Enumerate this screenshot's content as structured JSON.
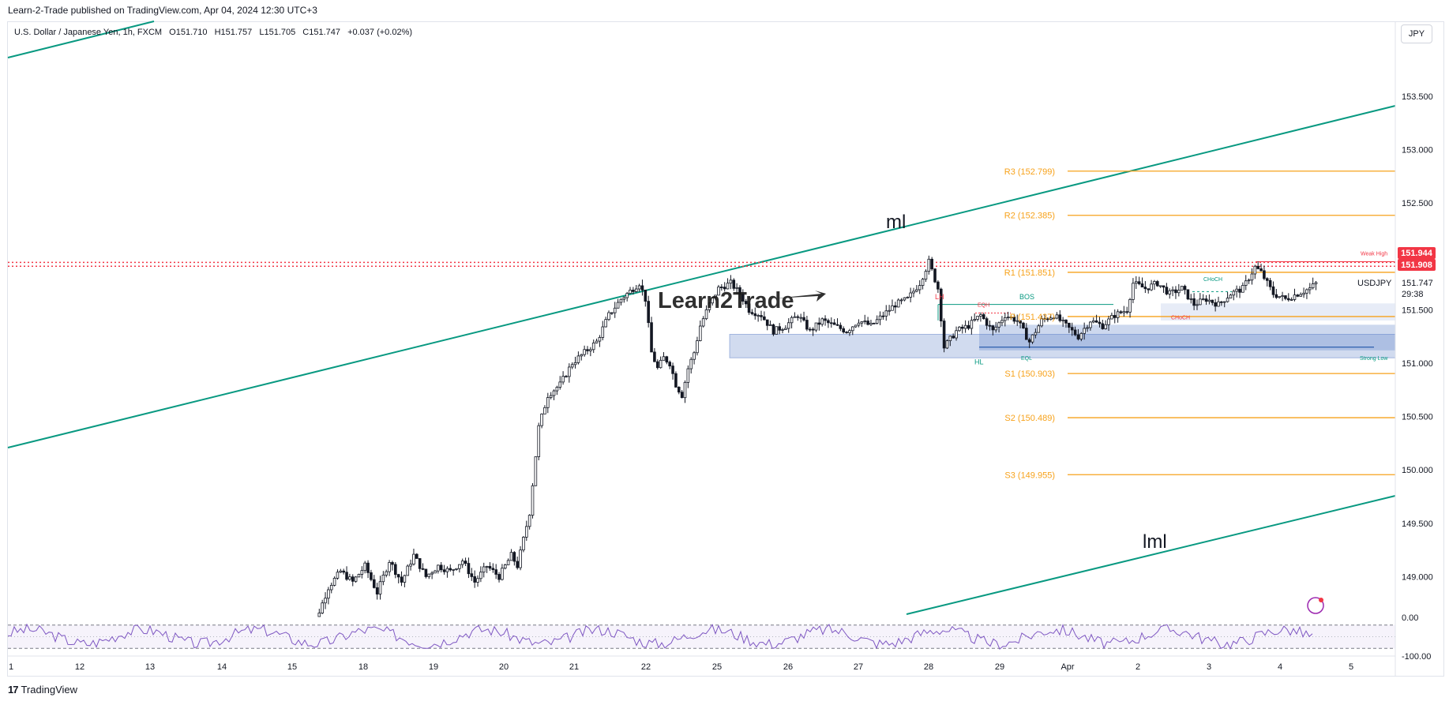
{
  "header": {
    "publish_text": "Learn-2-Trade published on TradingView.com, Apr 04, 2024 12:30 UTC+3",
    "symbol_name": "U.S. Dollar / Japanese Yen, 1h, FXCM",
    "open": "O151.710",
    "high": "H151.757",
    "low": "L151.705",
    "close": "C151.747",
    "change": "+0.037 (+0.02%)",
    "currency_button": "JPY"
  },
  "footer": {
    "brand": "TradingView",
    "logo_glyph": "17"
  },
  "watermark": "Learn2Trade",
  "colors": {
    "bull_bear_candle": "#131722",
    "channel": "#089981",
    "pivot": "#f7a21b",
    "resistance_dots": "#f23645",
    "zone": "#5b7fc7",
    "rsi": "#7e57c2"
  },
  "chart_data": {
    "type": "candlestick",
    "symbol": "USDJPY",
    "interval": "1h",
    "ylim": [
      148.6,
      153.9
    ],
    "y_ticks": [
      "153.500",
      "153.000",
      "152.500",
      "152.000",
      "151.500",
      "151.000",
      "150.500",
      "150.000",
      "149.500",
      "149.000"
    ],
    "y_tick_values": [
      153.5,
      153.0,
      152.5,
      152.0,
      151.5,
      151.0,
      150.5,
      150.0,
      149.5,
      149.0
    ],
    "x_ticks": [
      "1",
      "12",
      "13",
      "14",
      "15",
      "18",
      "19",
      "20",
      "21",
      "22",
      "25",
      "26",
      "27",
      "28",
      "29",
      "Apr",
      "2",
      "3",
      "4",
      "5"
    ],
    "price_badges": [
      {
        "label": "151.944",
        "value": 151.944,
        "color": "#f23645"
      },
      {
        "label": "151.908",
        "value": 151.908,
        "color": "#f23645"
      }
    ],
    "last_price": {
      "symbol": "USDJPY",
      "label": "151.747",
      "timer": "29:38",
      "value": 151.747
    },
    "pivots": [
      {
        "label": "R3 (152.799)",
        "value": 152.799
      },
      {
        "label": "R2 (152.385)",
        "value": 152.385
      },
      {
        "label": "R1 (151.851)",
        "value": 151.851
      },
      {
        "label": "P (151.437)",
        "value": 151.437
      },
      {
        "label": "S1 (150.903)",
        "value": 150.903
      },
      {
        "label": "S2 (150.489)",
        "value": 150.489
      },
      {
        "label": "S3 (149.955)",
        "value": 149.955
      }
    ],
    "channel_labels": [
      "ml",
      "lml"
    ],
    "smc_labels": {
      "lh": "LH",
      "eqh": "EQH",
      "bos": "BOS",
      "hl": "HL",
      "eql": "EQL",
      "choch_top": "CHoCH",
      "choch_bottom": "CHoCH",
      "weak_high": "Weak High",
      "strong_low": "Strong Low"
    },
    "resistance_levels": [
      151.944,
      151.908
    ],
    "price_path": [
      [
        0,
        148.45
      ],
      [
        4,
        148.6
      ],
      [
        8,
        148.9
      ],
      [
        12,
        149.05
      ],
      [
        16,
        148.95
      ],
      [
        20,
        149.1
      ],
      [
        24,
        148.85
      ],
      [
        28,
        149.15
      ],
      [
        32,
        148.95
      ],
      [
        36,
        149.2
      ],
      [
        40,
        149.0
      ],
      [
        44,
        149.1
      ],
      [
        48,
        149.05
      ],
      [
        52,
        149.15
      ],
      [
        56,
        148.95
      ],
      [
        60,
        149.1
      ],
      [
        64,
        149.0
      ],
      [
        68,
        149.2
      ],
      [
        70,
        149.1
      ],
      [
        74,
        149.6
      ],
      [
        77,
        150.4
      ],
      [
        80,
        150.7
      ],
      [
        84,
        150.8
      ],
      [
        88,
        151.0
      ],
      [
        92,
        151.1
      ],
      [
        96,
        151.2
      ],
      [
        100,
        151.45
      ],
      [
        104,
        151.6
      ],
      [
        108,
        151.7
      ],
      [
        110,
        151.75
      ],
      [
        112,
        151.6
      ],
      [
        114,
        151.1
      ],
      [
        116,
        150.95
      ],
      [
        118,
        151.05
      ],
      [
        120,
        151.0
      ],
      [
        122,
        150.8
      ],
      [
        124,
        150.7
      ],
      [
        126,
        150.95
      ],
      [
        128,
        151.1
      ],
      [
        130,
        151.35
      ],
      [
        133,
        151.55
      ],
      [
        136,
        151.7
      ],
      [
        140,
        151.75
      ],
      [
        143,
        151.65
      ],
      [
        146,
        151.5
      ],
      [
        150,
        151.45
      ],
      [
        154,
        151.3
      ],
      [
        158,
        151.35
      ],
      [
        162,
        151.45
      ],
      [
        166,
        151.3
      ],
      [
        170,
        151.4
      ],
      [
        174,
        151.35
      ],
      [
        178,
        151.3
      ],
      [
        182,
        151.4
      ],
      [
        186,
        151.35
      ],
      [
        190,
        151.45
      ],
      [
        194,
        151.55
      ],
      [
        198,
        151.6
      ],
      [
        202,
        151.75
      ],
      [
        205,
        151.95
      ],
      [
        208,
        151.7
      ],
      [
        210,
        151.15
      ],
      [
        214,
        151.3
      ],
      [
        218,
        151.35
      ],
      [
        222,
        151.45
      ],
      [
        226,
        151.3
      ],
      [
        230,
        151.45
      ],
      [
        234,
        151.4
      ],
      [
        238,
        151.2
      ],
      [
        242,
        151.4
      ],
      [
        246,
        151.45
      ],
      [
        250,
        151.35
      ],
      [
        254,
        151.25
      ],
      [
        258,
        151.4
      ],
      [
        262,
        151.35
      ],
      [
        266,
        151.45
      ],
      [
        270,
        151.5
      ],
      [
        272,
        151.75
      ],
      [
        276,
        151.7
      ],
      [
        280,
        151.75
      ],
      [
        284,
        151.65
      ],
      [
        288,
        151.7
      ],
      [
        292,
        151.55
      ],
      [
        296,
        151.6
      ],
      [
        300,
        151.55
      ],
      [
        304,
        151.65
      ],
      [
        308,
        151.7
      ],
      [
        312,
        151.9
      ],
      [
        314,
        151.85
      ],
      [
        318,
        151.65
      ],
      [
        322,
        151.6
      ],
      [
        326,
        151.65
      ],
      [
        330,
        151.7
      ],
      [
        332,
        151.747
      ]
    ],
    "rsi": {
      "ylim": [
        -100,
        0
      ],
      "y_ticks": [
        "0.00",
        "-100.00"
      ],
      "y_tick_values": [
        0,
        -100
      ],
      "upper_band": -20,
      "lower_band": -80
    },
    "grid": false
  }
}
